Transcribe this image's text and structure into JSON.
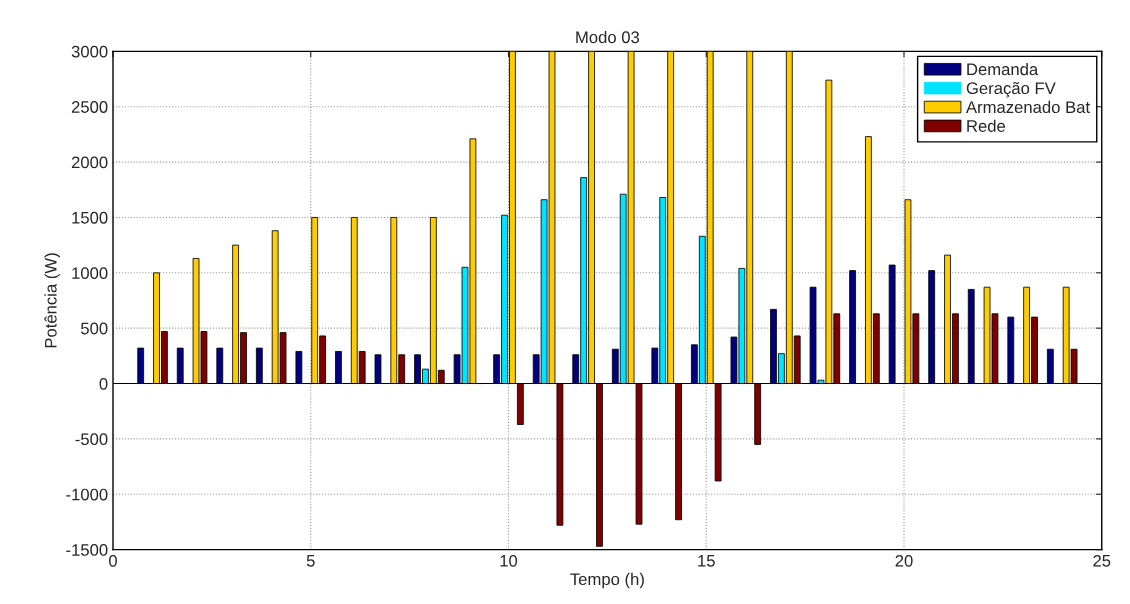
{
  "chart_data": {
    "type": "bar",
    "title": "Modo 03",
    "xlabel": "Tempo (h)",
    "ylabel": "Potência (W)",
    "x": [
      1,
      2,
      3,
      4,
      5,
      6,
      7,
      8,
      9,
      10,
      11,
      12,
      13,
      14,
      15,
      16,
      17,
      18,
      19,
      20,
      21,
      22,
      23,
      24
    ],
    "series": [
      {
        "name": "Demanda",
        "color": "#000080",
        "values": [
          320,
          320,
          320,
          320,
          290,
          290,
          260,
          260,
          260,
          260,
          260,
          260,
          310,
          320,
          350,
          420,
          670,
          870,
          1020,
          1070,
          1020,
          850,
          600,
          310
        ]
      },
      {
        "name": "Geração FV",
        "color": "#00e5ff",
        "values": [
          0,
          0,
          0,
          0,
          0,
          0,
          0,
          130,
          1050,
          1520,
          1660,
          1860,
          1710,
          1680,
          1330,
          1040,
          270,
          30,
          0,
          0,
          0,
          0,
          0,
          0
        ]
      },
      {
        "name": "Armazenado Bat",
        "color": "#ffcc00",
        "values": [
          1000,
          1130,
          1250,
          1380,
          1500,
          1500,
          1500,
          1500,
          2210,
          3000,
          3000,
          3000,
          3000,
          3000,
          3000,
          3000,
          3000,
          2740,
          2230,
          1660,
          1160,
          870,
          870,
          870
        ]
      },
      {
        "name": "Rede",
        "color": "#800000",
        "values": [
          470,
          470,
          460,
          460,
          430,
          290,
          260,
          120,
          0,
          -370,
          -1280,
          -1470,
          -1270,
          -1230,
          -880,
          -550,
          430,
          630,
          630,
          630,
          630,
          630,
          600,
          310
        ]
      }
    ],
    "xlim": [
      0,
      25
    ],
    "xticks": [
      0,
      5,
      10,
      15,
      20,
      25
    ],
    "ylim": [
      -1500,
      3000
    ],
    "yticks": [
      -1500,
      -1000,
      -500,
      0,
      500,
      1000,
      1500,
      2000,
      2500,
      3000
    ],
    "grid": true,
    "legend": "top right"
  }
}
